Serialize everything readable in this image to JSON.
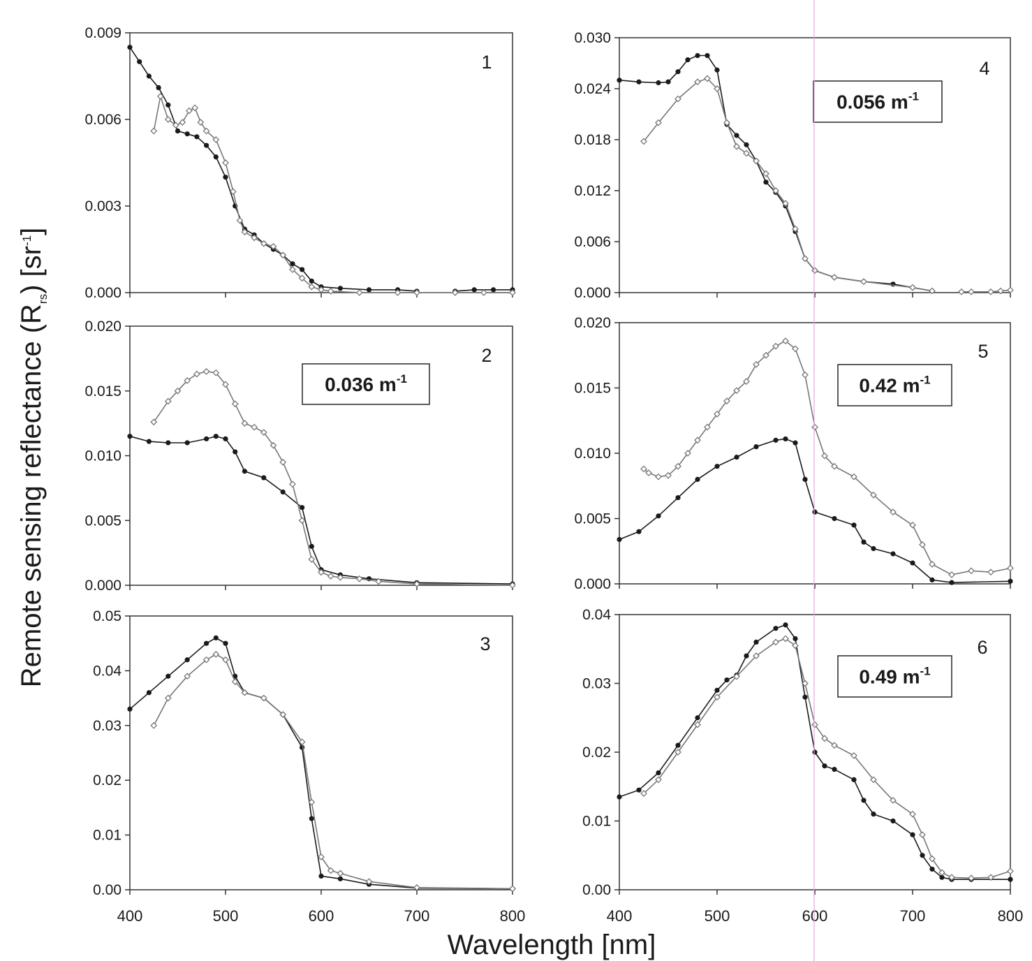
{
  "figure": {
    "ylabel": "Remote sensing reflectance (R",
    "ylabel_sub": "rs",
    "ylabel_tail": ")  [sr",
    "ylabel_sup": "-1",
    "ylabel_end": "]",
    "xlabel": "Wavelength  [nm]"
  },
  "colors": {
    "filled_series": "#1a1a1a",
    "open_series": "#777777",
    "axis": "#333333",
    "marker_line": "#e6a8d7"
  },
  "chart_data": [
    {
      "type": "line",
      "panel": "1",
      "xlim": [
        400,
        800
      ],
      "ylim": [
        0,
        0.009
      ],
      "xticks": [],
      "yticks": [
        "0.000",
        "0.003",
        "0.006",
        "0.009"
      ],
      "coefficient": null,
      "series": [
        {
          "marker": "filled-circle",
          "x": [
            400,
            410,
            420,
            430,
            440,
            450,
            460,
            470,
            480,
            490,
            500,
            510,
            520,
            530,
            540,
            550,
            560,
            570,
            580,
            590,
            600,
            620,
            650,
            680,
            700
          ],
          "y": [
            0.0085,
            0.008,
            0.0075,
            0.0071,
            0.0065,
            0.0056,
            0.0055,
            0.0054,
            0.0051,
            0.0047,
            0.004,
            0.003,
            0.0022,
            0.002,
            0.0017,
            0.0015,
            0.0013,
            0.001,
            0.0008,
            0.0004,
            0.0002,
            0.00015,
            0.0001,
            0.0001,
            5e-05
          ]
        },
        {
          "marker": "filled-circle",
          "x": [
            740,
            760,
            780,
            800
          ],
          "y": [
            5e-05,
            0.0001,
            0.0001,
            0.0001
          ]
        },
        {
          "marker": "open-diamond",
          "x": [
            425,
            432,
            440,
            448,
            455,
            462,
            468,
            474,
            480,
            490,
            500,
            508,
            515,
            520,
            530,
            540,
            550,
            560,
            570,
            580,
            590,
            600,
            610,
            640,
            680,
            700,
            740,
            770,
            800
          ],
          "y": [
            0.0056,
            0.0068,
            0.006,
            0.0058,
            0.0059,
            0.0063,
            0.0064,
            0.0059,
            0.0056,
            0.0053,
            0.0045,
            0.0035,
            0.0025,
            0.0021,
            0.0019,
            0.0017,
            0.0016,
            0.0013,
            0.0008,
            0.0005,
            0.0002,
            0.0001,
            5e-05,
            0.0,
            0.0,
            0.0,
            0.0,
            0.0,
            0.0
          ]
        }
      ]
    },
    {
      "type": "line",
      "panel": "2",
      "xlim": [
        400,
        800
      ],
      "ylim": [
        0,
        0.02
      ],
      "xticks": [],
      "yticks": [
        "0.000",
        "0.005",
        "0.010",
        "0.015",
        "0.020"
      ],
      "coefficient": {
        "value": "0.036 m",
        "sup": "-1"
      },
      "series": [
        {
          "marker": "filled-circle",
          "x": [
            400,
            420,
            440,
            460,
            480,
            490,
            500,
            510,
            520,
            540,
            560,
            580,
            590,
            600,
            620,
            650,
            700,
            800
          ],
          "y": [
            0.0115,
            0.0111,
            0.011,
            0.011,
            0.0113,
            0.0115,
            0.0113,
            0.0103,
            0.0088,
            0.0083,
            0.0072,
            0.006,
            0.003,
            0.0012,
            0.0008,
            0.0005,
            0.0002,
            0.0001
          ]
        },
        {
          "marker": "open-diamond",
          "x": [
            425,
            440,
            450,
            460,
            470,
            480,
            490,
            500,
            510,
            520,
            530,
            540,
            550,
            560,
            570,
            580,
            590,
            600,
            610,
            620,
            640,
            660,
            700,
            800
          ],
          "y": [
            0.0126,
            0.0142,
            0.015,
            0.0158,
            0.0163,
            0.0165,
            0.0164,
            0.0155,
            0.014,
            0.0125,
            0.0122,
            0.0118,
            0.0108,
            0.0095,
            0.0078,
            0.005,
            0.002,
            0.001,
            0.0007,
            0.0006,
            0.0005,
            0.0003,
            0.0001,
            0.0
          ]
        }
      ]
    },
    {
      "type": "line",
      "panel": "3",
      "xlim": [
        400,
        800
      ],
      "ylim": [
        0,
        0.05
      ],
      "xticks": [
        "400",
        "500",
        "600",
        "700",
        "800"
      ],
      "yticks": [
        "0.00",
        "0.01",
        "0.02",
        "0.03",
        "0.04",
        "0.05"
      ],
      "coefficient": null,
      "series": [
        {
          "marker": "filled-circle",
          "x": [
            400,
            420,
            440,
            460,
            480,
            490,
            500,
            510,
            520,
            540,
            560,
            580,
            590,
            600,
            620,
            650,
            700,
            800
          ],
          "y": [
            0.033,
            0.036,
            0.039,
            0.042,
            0.045,
            0.046,
            0.045,
            0.039,
            0.036,
            0.035,
            0.032,
            0.026,
            0.013,
            0.0025,
            0.002,
            0.001,
            0.0003,
            0.0002
          ]
        },
        {
          "marker": "open-diamond",
          "x": [
            425,
            440,
            460,
            480,
            490,
            500,
            510,
            520,
            540,
            560,
            580,
            590,
            600,
            610,
            620,
            650,
            700,
            800
          ],
          "y": [
            0.03,
            0.035,
            0.039,
            0.042,
            0.043,
            0.042,
            0.038,
            0.036,
            0.035,
            0.032,
            0.027,
            0.016,
            0.006,
            0.0035,
            0.003,
            0.0015,
            0.0004,
            0.0002
          ]
        }
      ]
    },
    {
      "type": "line",
      "panel": "4",
      "xlim": [
        400,
        800
      ],
      "ylim": [
        0,
        0.03
      ],
      "xticks": [],
      "yticks": [
        "0.000",
        "0.006",
        "0.012",
        "0.018",
        "0.024",
        "0.030"
      ],
      "coefficient": {
        "value": "0.056 m",
        "sup": "-1"
      },
      "series": [
        {
          "marker": "filled-circle",
          "x": [
            400,
            420,
            440,
            450,
            460,
            470,
            480,
            490,
            500,
            510,
            520,
            530,
            540,
            550,
            560,
            570,
            580,
            590,
            600,
            620,
            650,
            680,
            700,
            720
          ],
          "y": [
            0.025,
            0.0248,
            0.0247,
            0.0248,
            0.026,
            0.0274,
            0.0279,
            0.0279,
            0.0262,
            0.0198,
            0.0185,
            0.0174,
            0.0155,
            0.013,
            0.0118,
            0.0102,
            0.0072,
            0.004,
            0.0026,
            0.0018,
            0.0013,
            0.001,
            0.0006,
            0.0002
          ]
        },
        {
          "marker": "open-diamond",
          "x": [
            425,
            440,
            460,
            480,
            490,
            500,
            510,
            520,
            530,
            540,
            550,
            560,
            570,
            580,
            590,
            600,
            620,
            650,
            700,
            720
          ],
          "y": [
            0.0178,
            0.02,
            0.0228,
            0.0248,
            0.0252,
            0.024,
            0.02,
            0.0172,
            0.0164,
            0.0155,
            0.014,
            0.012,
            0.0105,
            0.0075,
            0.004,
            0.0026,
            0.0018,
            0.0013,
            0.0006,
            0.0002
          ]
        },
        {
          "marker": "open-diamond",
          "x": [
            750,
            760,
            780,
            790,
            800
          ],
          "y": [
            0.0001,
            0.0001,
            0.0001,
            0.0002,
            0.0003
          ]
        }
      ]
    },
    {
      "type": "line",
      "panel": "5",
      "xlim": [
        400,
        800
      ],
      "ylim": [
        0,
        0.02
      ],
      "xticks": [],
      "yticks": [
        "0.000",
        "0.005",
        "0.010",
        "0.015",
        "0.020"
      ],
      "coefficient": {
        "value": "0.42 m",
        "sup": "-1"
      },
      "series": [
        {
          "marker": "filled-circle",
          "x": [
            400,
            420,
            440,
            460,
            480,
            500,
            520,
            540,
            560,
            570,
            580,
            590,
            600,
            620,
            640,
            650,
            660,
            680,
            700,
            720,
            740,
            800
          ],
          "y": [
            0.0034,
            0.004,
            0.0052,
            0.0066,
            0.008,
            0.009,
            0.0097,
            0.0105,
            0.011,
            0.0111,
            0.0108,
            0.008,
            0.0055,
            0.005,
            0.0045,
            0.0032,
            0.0027,
            0.0023,
            0.0016,
            0.0003,
            0.0001,
            0.0002
          ]
        },
        {
          "marker": "open-diamond",
          "x": [
            425,
            430,
            440,
            450,
            460,
            470,
            480,
            490,
            500,
            510,
            520,
            530,
            540,
            550,
            560,
            570,
            580,
            590,
            600,
            610,
            620,
            640,
            660,
            680,
            700,
            710,
            720,
            740,
            760,
            780,
            800
          ],
          "y": [
            0.0088,
            0.0085,
            0.0082,
            0.0083,
            0.009,
            0.01,
            0.011,
            0.012,
            0.013,
            0.014,
            0.0148,
            0.0155,
            0.0168,
            0.0175,
            0.0182,
            0.0186,
            0.018,
            0.016,
            0.012,
            0.0098,
            0.009,
            0.0082,
            0.0068,
            0.0055,
            0.0045,
            0.003,
            0.0015,
            0.0007,
            0.001,
            0.0009,
            0.0012
          ]
        }
      ]
    },
    {
      "type": "line",
      "panel": "6",
      "xlim": [
        400,
        800
      ],
      "ylim": [
        0,
        0.04
      ],
      "xticks": [
        "400",
        "500",
        "600",
        "700",
        "800"
      ],
      "yticks": [
        "0.00",
        "0.01",
        "0.02",
        "0.03",
        "0.04"
      ],
      "coefficient": {
        "value": "0.49 m",
        "sup": "-1"
      },
      "series": [
        {
          "marker": "filled-circle",
          "x": [
            400,
            420,
            440,
            460,
            480,
            500,
            510,
            520,
            530,
            540,
            560,
            570,
            580,
            590,
            600,
            610,
            620,
            640,
            650,
            660,
            680,
            700,
            710,
            720,
            730,
            740,
            760,
            800
          ],
          "y": [
            0.0135,
            0.0145,
            0.017,
            0.021,
            0.025,
            0.029,
            0.0305,
            0.0312,
            0.034,
            0.036,
            0.038,
            0.0385,
            0.0365,
            0.028,
            0.02,
            0.018,
            0.0175,
            0.016,
            0.013,
            0.011,
            0.01,
            0.008,
            0.005,
            0.003,
            0.0018,
            0.0015,
            0.0015,
            0.0015
          ]
        },
        {
          "marker": "open-diamond",
          "x": [
            425,
            440,
            460,
            480,
            500,
            520,
            540,
            560,
            570,
            580,
            590,
            600,
            610,
            620,
            640,
            660,
            680,
            700,
            710,
            720,
            730,
            740,
            760,
            780,
            800
          ],
          "y": [
            0.014,
            0.016,
            0.02,
            0.024,
            0.028,
            0.031,
            0.034,
            0.036,
            0.0365,
            0.0355,
            0.03,
            0.024,
            0.022,
            0.021,
            0.0195,
            0.016,
            0.013,
            0.011,
            0.008,
            0.0045,
            0.0025,
            0.0018,
            0.0017,
            0.0018,
            0.0027
          ]
        }
      ]
    }
  ]
}
